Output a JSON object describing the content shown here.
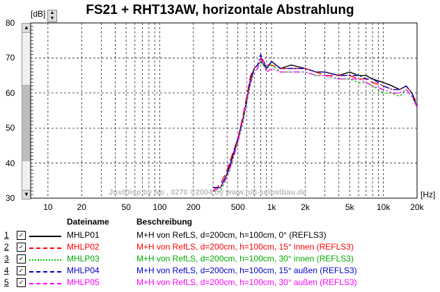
{
  "window": {
    "title": "FS21 + RHT13AW, horizontale Abstrahlung",
    "unit_y": "[dB]",
    "unit_x": "[Hz]",
    "watermark": "JustDisp by No , 0270 ©2004 by www.hifi-selbstbau.de"
  },
  "chart_data": {
    "type": "line",
    "title": "FS21 + RHT13AW, horizontale Abstrahlung",
    "xlabel": "[Hz]",
    "ylabel": "[dB]",
    "xscale": "log",
    "xlim": [
      7,
      20000
    ],
    "ylim": [
      30,
      80
    ],
    "x_ticks": [
      10,
      20,
      50,
      100,
      200,
      500,
      1000,
      2000,
      5000,
      10000,
      20000
    ],
    "x_tick_labels": [
      "10",
      "20",
      "50",
      "100",
      "200",
      "500",
      "1k",
      "2k",
      "5k",
      "10k",
      "20k"
    ],
    "y_ticks": [
      30,
      40,
      50,
      60,
      70,
      80
    ],
    "y_tick_labels": [
      "30",
      "40",
      "50",
      "60",
      "70",
      "80"
    ],
    "grid": true,
    "x": [
      300,
      350,
      400,
      450,
      500,
      550,
      600,
      650,
      700,
      750,
      800,
      900,
      1000,
      1200,
      1500,
      2000,
      2500,
      3000,
      4000,
      5000,
      6000,
      7000,
      8000,
      10000,
      12000,
      14000,
      16000,
      18000,
      20000
    ],
    "series": [
      {
        "name": "MHLP01",
        "color": "#000000",
        "dash": "",
        "values": [
          33,
          33,
          37,
          42,
          47,
          52,
          58,
          64,
          67,
          68,
          69,
          67,
          69,
          67,
          68,
          67,
          66,
          66,
          65,
          66,
          65,
          65,
          64,
          63,
          62,
          61,
          62,
          60,
          56
        ]
      },
      {
        "name": "MHLP02",
        "color": "#ff0000",
        "dash": "12,5",
        "values": [
          32,
          34,
          38,
          43,
          47,
          53,
          59,
          65,
          67,
          68,
          70,
          68,
          68,
          67,
          67,
          67,
          66,
          65,
          65,
          65,
          64,
          64,
          63,
          62,
          61,
          61,
          62,
          60,
          57
        ]
      },
      {
        "name": "MHLP03",
        "color": "#00cc00",
        "dash": "3,3",
        "values": [
          32,
          32,
          36,
          41,
          46,
          51,
          57,
          63,
          66,
          67,
          69,
          67,
          68,
          66,
          66,
          66,
          65,
          65,
          64,
          64,
          63,
          63,
          62,
          60,
          60,
          59,
          61,
          59,
          56
        ]
      },
      {
        "name": "MHLP04",
        "color": "#0000cc",
        "dash": "8,3,2,3",
        "values": [
          33,
          33,
          37,
          42,
          47,
          52,
          58,
          64,
          67,
          68,
          71,
          67,
          69,
          67,
          67,
          67,
          66,
          66,
          65,
          65,
          65,
          64,
          64,
          62,
          61,
          61,
          62,
          60,
          56
        ]
      },
      {
        "name": "MHLP05",
        "color": "#ff00ff",
        "dash": "8,3,2,3,2,3",
        "values": [
          32,
          33,
          36,
          41,
          46,
          52,
          58,
          63,
          66,
          67,
          70,
          66,
          67,
          66,
          66,
          66,
          65,
          65,
          64,
          64,
          64,
          63,
          62,
          61,
          60,
          60,
          61,
          59,
          56
        ]
      }
    ]
  },
  "legend": {
    "header_name": "Dateiname",
    "header_desc": "Beschreibung",
    "rows": [
      {
        "num": "1",
        "check": "✓",
        "name": "MHLP01",
        "desc": "M+H von RefLS, d=200cm, h=100cm,   0° (REFLS3)",
        "color": "#000000",
        "style": "solid"
      },
      {
        "num": "2",
        "check": "✓",
        "name": "MHLP02",
        "desc": "M+H von RefLS, d=200cm, h=100cm, 15° innen (REFLS3)",
        "color": "#ff0000",
        "style": "dashed"
      },
      {
        "num": "3",
        "check": "✓",
        "name": "MHLP03",
        "desc": "M+H von RefLS, d=200cm, h=100cm, 30° innen (REFLS3)",
        "color": "#00cc00",
        "style": "dotted"
      },
      {
        "num": "4",
        "check": "✓",
        "name": "MHLP04",
        "desc": "M+H von RefLS, d=200cm, h=100cm, 15° außen (REFLS3)",
        "color": "#0000cc",
        "style": "dashed"
      },
      {
        "num": "5",
        "check": "✓",
        "name": "MHLP05",
        "desc": "M+H von RefLS, d=200cm, h=100cm, 30° außen (REFLS3)",
        "color": "#ff00ff",
        "style": "dashed"
      }
    ]
  }
}
